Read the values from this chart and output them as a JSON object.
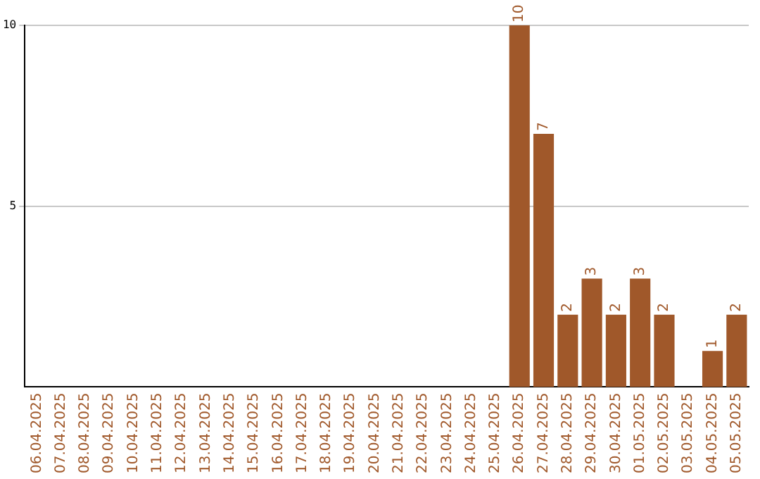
{
  "chart_data": {
    "type": "bar",
    "categories": [
      "06.04.2025",
      "07.04.2025",
      "08.04.2025",
      "09.04.2025",
      "10.04.2025",
      "11.04.2025",
      "12.04.2025",
      "13.04.2025",
      "14.04.2025",
      "15.04.2025",
      "16.04.2025",
      "17.04.2025",
      "18.04.2025",
      "19.04.2025",
      "20.04.2025",
      "21.04.2025",
      "22.04.2025",
      "23.04.2025",
      "24.04.2025",
      "25.04.2025",
      "26.04.2025",
      "27.04.2025",
      "28.04.2025",
      "29.04.2025",
      "30.04.2025",
      "01.05.2025",
      "02.05.2025",
      "03.05.2025",
      "04.05.2025",
      "05.05.2025"
    ],
    "values": [
      0,
      0,
      0,
      0,
      0,
      0,
      0,
      0,
      0,
      0,
      0,
      0,
      0,
      0,
      0,
      0,
      0,
      0,
      0,
      0,
      10,
      7,
      2,
      3,
      2,
      3,
      2,
      0,
      1,
      2
    ],
    "value_labels": [
      null,
      null,
      null,
      null,
      null,
      null,
      null,
      null,
      null,
      null,
      null,
      null,
      null,
      null,
      null,
      null,
      null,
      null,
      null,
      null,
      "10",
      "7",
      "2",
      "3",
      "2",
      "3",
      "2",
      null,
      "1",
      "2"
    ],
    "color": "#a0582a",
    "ylim": [
      0,
      10
    ],
    "yticks": [
      5,
      10
    ],
    "grid": "y",
    "legend": false
  }
}
